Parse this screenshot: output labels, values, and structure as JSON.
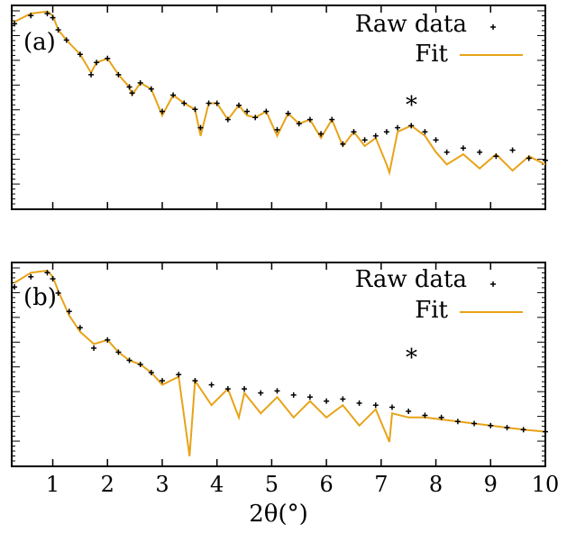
{
  "colors": {
    "raw": "#000000",
    "fit": "#E8A317",
    "frame": "#000000"
  },
  "xaxis": {
    "label": "2θ(°)",
    "ticks": [
      "1",
      "2",
      "3",
      "4",
      "5",
      "6",
      "7",
      "8",
      "9",
      "10"
    ]
  },
  "chart_data": [
    {
      "type": "scatter",
      "panel_label": "(a)",
      "legend": {
        "raw": "Raw data",
        "fit": "Fit",
        "placement": "top-right"
      },
      "annotation": "*",
      "annotation_x": 7.55,
      "xlim": [
        0.25,
        10.0
      ],
      "ylim": [
        0,
        1
      ],
      "grid": false,
      "series": [
        {
          "name": "Raw data",
          "x": [
            0.3,
            0.6,
            0.9,
            1.0,
            1.1,
            1.25,
            1.5,
            1.7,
            1.8,
            2.0,
            2.2,
            2.4,
            2.45,
            2.6,
            2.8,
            3.0,
            3.2,
            3.4,
            3.6,
            3.7,
            3.85,
            4.0,
            4.2,
            4.4,
            4.55,
            4.7,
            4.9,
            5.1,
            5.3,
            5.5,
            5.7,
            5.9,
            6.1,
            6.3,
            6.5,
            6.7,
            6.9,
            7.1,
            7.3,
            7.55,
            7.8,
            8.0,
            8.2,
            8.5,
            8.8,
            9.1,
            9.4,
            9.7,
            10.0
          ],
          "y": [
            0.91,
            0.95,
            0.96,
            0.94,
            0.88,
            0.83,
            0.76,
            0.66,
            0.72,
            0.74,
            0.66,
            0.6,
            0.57,
            0.62,
            0.59,
            0.48,
            0.56,
            0.52,
            0.49,
            0.4,
            0.52,
            0.52,
            0.44,
            0.51,
            0.48,
            0.45,
            0.48,
            0.39,
            0.47,
            0.42,
            0.44,
            0.37,
            0.44,
            0.32,
            0.38,
            0.34,
            0.36,
            0.38,
            0.4,
            0.41,
            0.38,
            0.34,
            0.28,
            0.3,
            0.28,
            0.26,
            0.29,
            0.25,
            0.24
          ]
        },
        {
          "name": "Fit",
          "x": [
            0.3,
            0.6,
            0.9,
            1.0,
            1.1,
            1.25,
            1.5,
            1.7,
            1.8,
            2.0,
            2.2,
            2.4,
            2.45,
            2.6,
            2.8,
            3.0,
            3.2,
            3.4,
            3.6,
            3.7,
            3.85,
            4.0,
            4.2,
            4.4,
            4.55,
            4.7,
            4.9,
            5.1,
            5.3,
            5.5,
            5.7,
            5.9,
            6.1,
            6.3,
            6.5,
            6.7,
            6.9,
            7.1,
            7.15,
            7.3,
            7.55,
            7.8,
            8.0,
            8.2,
            8.5,
            8.8,
            9.1,
            9.4,
            9.7,
            10.0
          ],
          "y": [
            0.92,
            0.96,
            0.97,
            0.95,
            0.88,
            0.83,
            0.76,
            0.67,
            0.72,
            0.74,
            0.66,
            0.6,
            0.56,
            0.62,
            0.59,
            0.46,
            0.56,
            0.52,
            0.49,
            0.36,
            0.52,
            0.52,
            0.44,
            0.51,
            0.46,
            0.45,
            0.48,
            0.36,
            0.47,
            0.42,
            0.44,
            0.35,
            0.44,
            0.31,
            0.38,
            0.31,
            0.35,
            0.22,
            0.18,
            0.38,
            0.41,
            0.36,
            0.28,
            0.22,
            0.27,
            0.2,
            0.27,
            0.19,
            0.26,
            0.22
          ]
        }
      ]
    },
    {
      "type": "scatter",
      "panel_label": "(b)",
      "legend": {
        "raw": "Raw data",
        "fit": "Fit",
        "placement": "top-right"
      },
      "annotation": "*",
      "annotation_x": 7.55,
      "xlim": [
        0.25,
        10.0
      ],
      "ylim": [
        0,
        1
      ],
      "grid": false,
      "series": [
        {
          "name": "Raw data",
          "x": [
            0.3,
            0.6,
            0.9,
            1.0,
            1.1,
            1.3,
            1.5,
            1.75,
            2.0,
            2.2,
            2.4,
            2.6,
            2.8,
            3.0,
            3.3,
            3.6,
            3.9,
            4.2,
            4.5,
            4.8,
            5.1,
            5.4,
            5.7,
            6.0,
            6.3,
            6.6,
            6.9,
            7.2,
            7.5,
            7.8,
            8.1,
            8.4,
            8.7,
            9.0,
            9.3,
            9.6,
            10.0
          ],
          "y": [
            0.88,
            0.93,
            0.95,
            0.92,
            0.85,
            0.76,
            0.68,
            0.58,
            0.62,
            0.56,
            0.52,
            0.5,
            0.46,
            0.42,
            0.45,
            0.42,
            0.4,
            0.38,
            0.38,
            0.36,
            0.37,
            0.35,
            0.34,
            0.32,
            0.33,
            0.31,
            0.3,
            0.29,
            0.27,
            0.25,
            0.24,
            0.22,
            0.21,
            0.2,
            0.19,
            0.18,
            0.17
          ]
        },
        {
          "name": "Fit",
          "x": [
            0.3,
            0.6,
            0.9,
            1.0,
            1.1,
            1.3,
            1.5,
            1.75,
            2.0,
            2.2,
            2.4,
            2.6,
            2.8,
            3.0,
            3.3,
            3.5,
            3.6,
            3.9,
            4.2,
            4.4,
            4.5,
            4.8,
            5.1,
            5.4,
            5.7,
            6.0,
            6.3,
            6.6,
            6.9,
            7.15,
            7.2,
            7.5,
            7.8,
            8.1,
            8.4,
            8.7,
            9.0,
            9.3,
            9.6,
            10.0
          ],
          "y": [
            0.9,
            0.95,
            0.96,
            0.93,
            0.86,
            0.74,
            0.66,
            0.6,
            0.62,
            0.56,
            0.52,
            0.5,
            0.46,
            0.4,
            0.44,
            0.05,
            0.42,
            0.3,
            0.38,
            0.24,
            0.36,
            0.26,
            0.34,
            0.24,
            0.32,
            0.24,
            0.3,
            0.2,
            0.28,
            0.12,
            0.26,
            0.24,
            0.24,
            0.23,
            0.22,
            0.21,
            0.2,
            0.19,
            0.18,
            0.17
          ]
        }
      ]
    }
  ]
}
